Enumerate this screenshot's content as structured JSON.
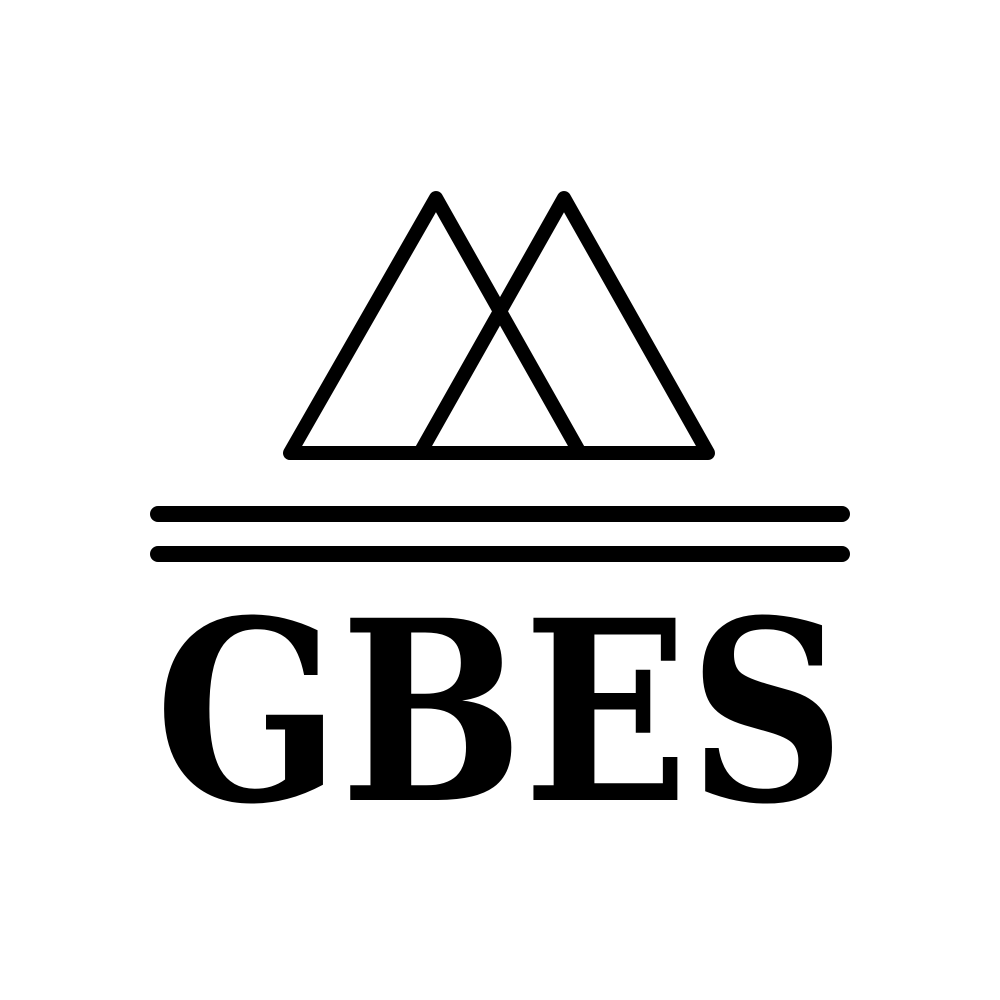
{
  "logo": {
    "wordmark": "GBES",
    "ink_color": "#000000",
    "background_color": "#ffffff",
    "icon": "twin-mountain-peaks-icon"
  }
}
